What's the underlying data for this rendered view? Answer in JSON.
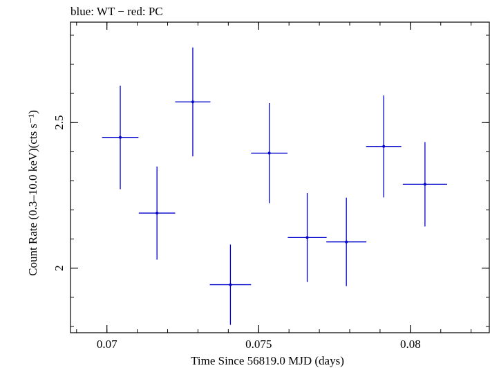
{
  "chart_data": {
    "type": "scatter",
    "title": "blue: WT − red: PC",
    "xlabel": "Time Since 56819.0 MJD (days)",
    "ylabel": "Count Rate (0.3–10.0 keV)(cts s⁻¹)",
    "xlim": [
      0.0688,
      0.0826
    ],
    "ylim": [
      1.778,
      2.845
    ],
    "x_ticks": [
      {
        "value": 0.07,
        "label": "0.07"
      },
      {
        "value": 0.075,
        "label": "0.075"
      },
      {
        "value": 0.08,
        "label": "0.08"
      }
    ],
    "y_ticks": [
      {
        "value": 2.0,
        "label": "2"
      },
      {
        "value": 2.5,
        "label": "2.5"
      }
    ],
    "grid": false,
    "series": [
      {
        "color": "#0000cc",
        "points": [
          {
            "x": 0.07044,
            "xerr": 0.0006,
            "y": 2.449,
            "yerr": 0.178
          },
          {
            "x": 0.07165,
            "xerr": 0.0006,
            "y": 2.189,
            "yerr": 0.16
          },
          {
            "x": 0.07283,
            "xerr": 0.00058,
            "y": 2.571,
            "yerr": 0.187
          },
          {
            "x": 0.07407,
            "xerr": 0.00068,
            "y": 1.943,
            "yerr": 0.138
          },
          {
            "x": 0.07535,
            "xerr": 0.0006,
            "y": 2.395,
            "yerr": 0.172
          },
          {
            "x": 0.0766,
            "xerr": 0.00064,
            "y": 2.105,
            "yerr": 0.153
          },
          {
            "x": 0.07789,
            "xerr": 0.00066,
            "y": 2.09,
            "yerr": 0.152
          },
          {
            "x": 0.07912,
            "xerr": 0.00058,
            "y": 2.418,
            "yerr": 0.175
          },
          {
            "x": 0.08048,
            "xerr": 0.00073,
            "y": 2.288,
            "yerr": 0.145
          }
        ]
      }
    ]
  }
}
